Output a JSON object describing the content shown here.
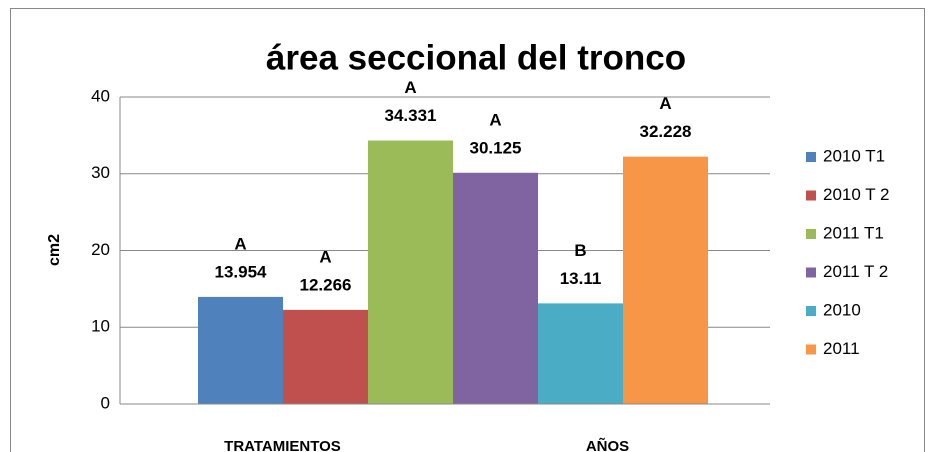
{
  "chart_data": {
    "type": "bar",
    "title": "área seccional del tronco",
    "y_label": "cm2",
    "categories": [
      "TRATAMIENTOS",
      "AÑOS"
    ],
    "series": [
      {
        "name": "2010 T1",
        "color": "#4f81bd",
        "values": [
          13.954,
          null
        ],
        "letter": "A"
      },
      {
        "name": "2010 T 2",
        "color": "#c0504d",
        "values": [
          12.266,
          null
        ],
        "letter": "A"
      },
      {
        "name": "2011 T1",
        "color": "#9bbb59",
        "values": [
          34.331,
          null
        ],
        "letter": "A"
      },
      {
        "name": "2011 T 2",
        "color": "#8064a2",
        "values": [
          30.125,
          null
        ],
        "letter": "A"
      },
      {
        "name": "2010",
        "color": "#4bacc6",
        "values": [
          null,
          13.11
        ],
        "letter": "B"
      },
      {
        "name": "2011",
        "color": "#f79646",
        "values": [
          null,
          32.228
        ],
        "letter": "A"
      }
    ],
    "ylim": [
      0,
      40
    ],
    "yticks": [
      0,
      10,
      20,
      30,
      40
    ],
    "grid": true,
    "legend": "right"
  }
}
